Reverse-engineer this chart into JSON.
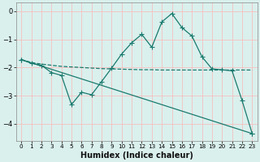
{
  "xlabel": "Humidex (Indice chaleur)",
  "bg_color": "#daf0ed",
  "grid_color": "#f5c0c0",
  "line_color": "#1a7a6e",
  "xlim": [
    -0.5,
    23.5
  ],
  "ylim": [
    -4.6,
    0.3
  ],
  "yticks": [
    0,
    -1,
    -2,
    -3,
    -4
  ],
  "xticks": [
    0,
    1,
    2,
    3,
    4,
    5,
    6,
    7,
    8,
    9,
    10,
    11,
    12,
    13,
    14,
    15,
    16,
    17,
    18,
    19,
    20,
    21,
    22,
    23
  ],
  "series1_x": [
    0,
    1,
    2,
    3,
    4,
    5,
    6,
    7,
    8,
    9,
    10,
    11,
    12,
    13,
    14,
    15,
    16,
    17,
    18,
    19,
    20,
    21,
    22,
    23
  ],
  "series1_y": [
    -1.72,
    -1.85,
    -1.92,
    -2.18,
    -2.28,
    -3.32,
    -2.88,
    -2.97,
    -2.5,
    -2.02,
    -1.52,
    -1.12,
    -0.82,
    -1.28,
    -0.38,
    -0.08,
    -0.58,
    -0.88,
    -1.62,
    -2.05,
    -2.08,
    -2.12,
    -3.18,
    -4.35
  ],
  "series2_x": [
    0,
    23
  ],
  "series2_y": [
    -1.72,
    -4.35
  ],
  "series3_x": [
    0,
    1,
    2,
    3,
    4,
    5,
    6,
    7,
    8,
    9,
    10,
    11,
    12,
    13,
    14,
    15,
    16,
    17,
    18,
    19,
    20,
    21,
    22,
    23
  ],
  "series3_y": [
    -1.72,
    -1.82,
    -1.88,
    -1.92,
    -1.96,
    -1.98,
    -2.0,
    -2.02,
    -2.04,
    -2.05,
    -2.06,
    -2.07,
    -2.08,
    -2.08,
    -2.09,
    -2.09,
    -2.09,
    -2.09,
    -2.09,
    -2.09,
    -2.09,
    -2.09,
    -2.09,
    -2.09
  ],
  "xlabel_fontsize": 7,
  "tick_fontsize": 6,
  "linewidth": 0.9,
  "markersize": 3
}
